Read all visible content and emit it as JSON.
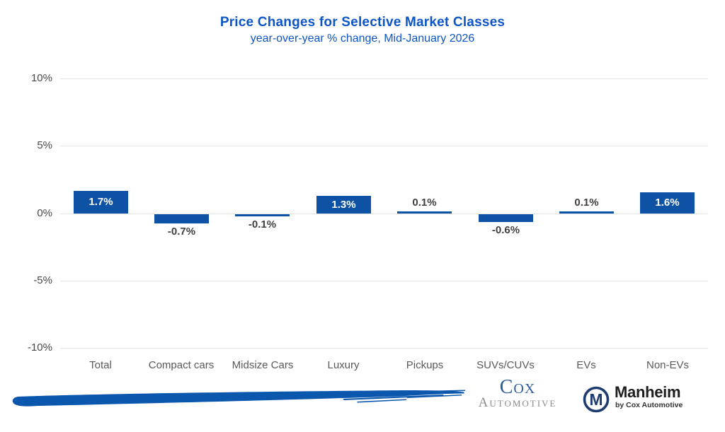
{
  "title": "Price Changes for Selective Market Classes",
  "subtitle": "year-over-year % change, Mid-January 2026",
  "chart_data": {
    "type": "bar",
    "categories": [
      "Total",
      "Compact cars",
      "Midsize Cars",
      "Luxury",
      "Pickups",
      "SUVs/CUVs",
      "EVs",
      "Non-EVs"
    ],
    "values": [
      1.7,
      -0.7,
      -0.1,
      1.3,
      0.1,
      -0.6,
      0.1,
      1.6
    ],
    "value_labels": [
      "1.7%",
      "-0.7%",
      "-0.1%",
      "1.3%",
      "0.1%",
      "-0.6%",
      "0.1%",
      "1.6%"
    ],
    "label_positions": [
      "inside",
      "below",
      "below",
      "inside",
      "above",
      "below",
      "above",
      "inside"
    ],
    "title": "Price Changes for Selective Market Classes",
    "subtitle": "year-over-year % change, Mid-January 2026",
    "xlabel": "",
    "ylabel": "",
    "ylim": [
      -10,
      10
    ],
    "yticks": [
      10,
      5,
      0,
      -5,
      -10
    ],
    "ytick_labels": [
      "10%",
      "5%",
      "0%",
      "-5%",
      "-10%"
    ],
    "grid": true,
    "legend": false,
    "bar_color": "#0d52a5"
  },
  "colors": {
    "title_blue": "#0d55c6",
    "bar_blue": "#0d52a5",
    "brush_blue": "#0b57ad",
    "gridline_gray": "#e3e3e3",
    "cox_blue": "#2d5c9c",
    "cox_gray": "#8b8b8b",
    "manheim_navy": "#1e3c6e"
  },
  "footer": {
    "cox_logo": {
      "line1": "Cox",
      "line2": "Automotive"
    },
    "manheim_logo": {
      "monogram": "M",
      "name": "Manheim",
      "tagline": "by Cox Automotive"
    }
  }
}
